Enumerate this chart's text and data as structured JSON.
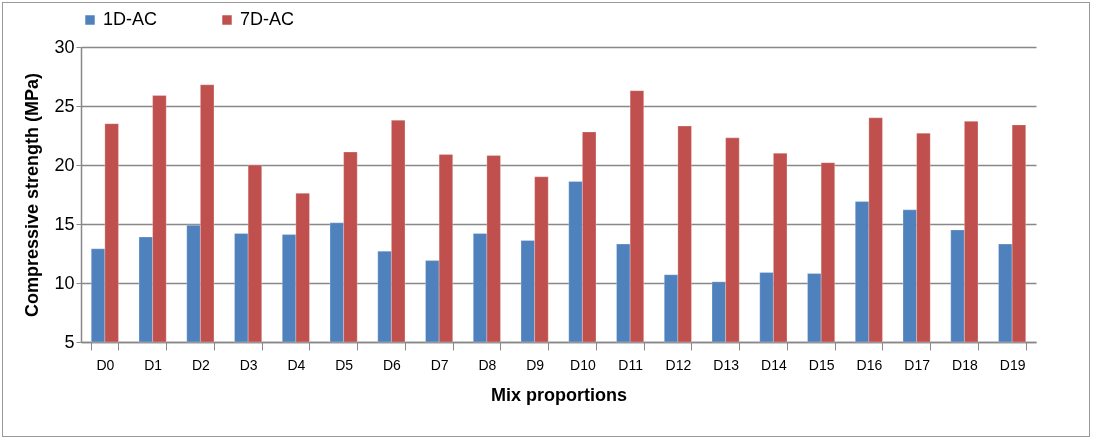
{
  "chart_data": {
    "type": "bar",
    "xlabel": "Mix proportions",
    "ylabel": "Compressive strength (MPa)",
    "categories": [
      "D0",
      "D1",
      "D2",
      "D3",
      "D4",
      "D5",
      "D6",
      "D7",
      "D8",
      "D9",
      "D10",
      "D11",
      "D12",
      "D13",
      "D14",
      "D15",
      "D16",
      "D17",
      "D18",
      "D19"
    ],
    "series": [
      {
        "name": "1D-AC",
        "color": "#4f81bd",
        "values": [
          12.9,
          13.9,
          14.9,
          14.2,
          14.1,
          15.1,
          12.7,
          11.9,
          14.2,
          13.6,
          18.6,
          13.3,
          10.7,
          10.1,
          10.9,
          10.8,
          16.9,
          16.2,
          14.5,
          13.3
        ]
      },
      {
        "name": "7D-AC",
        "color": "#c0504d",
        "values": [
          23.5,
          25.9,
          26.8,
          20.0,
          17.6,
          21.1,
          23.8,
          20.9,
          20.8,
          19.0,
          22.8,
          26.3,
          23.3,
          22.3,
          21.0,
          20.2,
          24.0,
          22.7,
          23.7,
          23.4
        ]
      }
    ],
    "ylim": [
      5,
      30
    ],
    "yticks": [
      5,
      10,
      15,
      20,
      25,
      30
    ],
    "grid": "y",
    "legend": "top"
  }
}
